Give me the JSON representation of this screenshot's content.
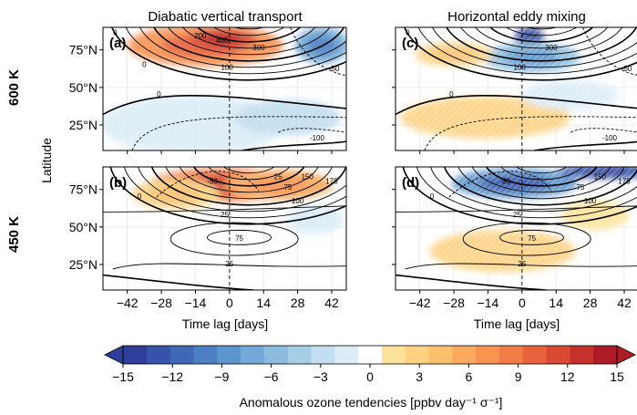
{
  "chart_data": {
    "type": "heatmap",
    "column_titles": [
      "Diabatic vertical transport",
      "Horizontal eddy mixing"
    ],
    "row_labels": [
      "600 K",
      "450 K"
    ],
    "ylabel": "Latitude",
    "xlabel": "Time lag [days]",
    "xlim": [
      -52,
      48
    ],
    "ylim": [
      8,
      90
    ],
    "xticks": [
      -42,
      -28,
      -14,
      0,
      14,
      28,
      42
    ],
    "xtick_labels": [
      "−42",
      "−28",
      "−14",
      "0",
      "14",
      "28",
      "42"
    ],
    "yticks": [
      25,
      50,
      75
    ],
    "ytick_labels": [
      "25°N",
      "50°N",
      "75°N"
    ],
    "vertical_line_at": 0,
    "panels": [
      {
        "label": "(a)",
        "row": 0,
        "col": 0,
        "contour_labels": [
          {
            "text": "0",
            "x": -47,
            "y": 86
          },
          {
            "text": "200",
            "x": -12,
            "y": 84
          },
          {
            "text": "400",
            "x": -3,
            "y": 81
          },
          {
            "text": "300",
            "x": 12,
            "y": 76
          },
          {
            "text": "100",
            "x": -1,
            "y": 63
          },
          {
            "text": "0",
            "x": -35,
            "y": 65
          },
          {
            "text": "0",
            "x": -29,
            "y": 45
          },
          {
            "text": "-50",
            "x": 43,
            "y": 62
          },
          {
            "text": "-100",
            "x": 36,
            "y": 16
          }
        ],
        "tendency_blobs": [
          {
            "x": -10,
            "y": 78,
            "dx": 32,
            "dy": 14,
            "value": 8
          },
          {
            "x": -3,
            "y": 82,
            "dx": 14,
            "dy": 7,
            "value": 12
          },
          {
            "x": 38,
            "y": 78,
            "dx": 11,
            "dy": 12,
            "value": -8
          },
          {
            "x": -15,
            "y": 25,
            "dx": 38,
            "dy": 20,
            "value": -2
          },
          {
            "x": 24,
            "y": 30,
            "dx": 22,
            "dy": 12,
            "value": -3
          }
        ]
      },
      {
        "label": "(c)",
        "row": 0,
        "col": 1,
        "contour_labels": [
          {
            "text": "0",
            "x": -47,
            "y": 86
          },
          {
            "text": "300",
            "x": 12,
            "y": 76
          },
          {
            "text": "100",
            "x": -1,
            "y": 63
          },
          {
            "text": "0",
            "x": -29,
            "y": 45
          },
          {
            "text": "-50",
            "x": 43,
            "y": 62
          },
          {
            "text": "-100",
            "x": 36,
            "y": 16
          }
        ],
        "tendency_blobs": [
          {
            "x": 3,
            "y": 84,
            "dx": 6,
            "dy": 6,
            "value": -15
          },
          {
            "x": 4,
            "y": 70,
            "dx": 20,
            "dy": 10,
            "value": -7
          },
          {
            "x": -28,
            "y": 72,
            "dx": 16,
            "dy": 8,
            "value": 4
          },
          {
            "x": -15,
            "y": 30,
            "dx": 35,
            "dy": 14,
            "value": 3
          },
          {
            "x": 20,
            "y": 45,
            "dx": 20,
            "dy": 10,
            "value": -2
          }
        ]
      },
      {
        "label": "(b)",
        "row": 1,
        "col": 0,
        "contour_labels": [
          {
            "text": "-50",
            "x": -7,
            "y": 80
          },
          {
            "text": "0",
            "x": -37,
            "y": 70
          },
          {
            "text": "25",
            "x": 20,
            "y": 83
          },
          {
            "text": "75",
            "x": 24,
            "y": 76
          },
          {
            "text": "150",
            "x": 32,
            "y": 83
          },
          {
            "text": "175",
            "x": 42,
            "y": 80
          },
          {
            "text": "100",
            "x": 28,
            "y": 67
          },
          {
            "text": "25",
            "x": -2,
            "y": 58
          },
          {
            "text": "75",
            "x": 4,
            "y": 42
          },
          {
            "text": "25",
            "x": 0,
            "y": 25
          }
        ],
        "tendency_blobs": [
          {
            "x": -3,
            "y": 78,
            "dx": 30,
            "dy": 11,
            "value": 10
          },
          {
            "x": 20,
            "y": 78,
            "dx": 22,
            "dy": 10,
            "value": 6
          },
          {
            "x": -22,
            "y": 72,
            "dx": 18,
            "dy": 10,
            "value": 4
          },
          {
            "x": 35,
            "y": 55,
            "dx": 12,
            "dy": 10,
            "value": -2
          }
        ]
      },
      {
        "label": "(d)",
        "row": 1,
        "col": 1,
        "contour_labels": [
          {
            "text": "-50",
            "x": -7,
            "y": 80
          },
          {
            "text": "0",
            "x": -37,
            "y": 70
          },
          {
            "text": "75",
            "x": 24,
            "y": 76
          },
          {
            "text": "150",
            "x": 32,
            "y": 83
          },
          {
            "text": "175",
            "x": 42,
            "y": 80
          },
          {
            "text": "100",
            "x": 28,
            "y": 67
          },
          {
            "text": "25",
            "x": -2,
            "y": 58
          },
          {
            "text": "75",
            "x": 4,
            "y": 42
          },
          {
            "text": "25",
            "x": 0,
            "y": 25
          }
        ],
        "tendency_blobs": [
          {
            "x": -3,
            "y": 79,
            "dx": 26,
            "dy": 10,
            "value": -10
          },
          {
            "x": 35,
            "y": 87,
            "dx": 20,
            "dy": 5,
            "value": -14
          },
          {
            "x": -8,
            "y": 34,
            "dx": 30,
            "dy": 14,
            "value": 3
          },
          {
            "x": 30,
            "y": 58,
            "dx": 14,
            "dy": 10,
            "value": 2
          }
        ]
      }
    ],
    "colorbar": {
      "label": "Anomalous ozone tendencies [ppbv day⁻¹ σ⁻¹]",
      "min": -15,
      "max": 15,
      "step": 1.5,
      "ticks": [
        -15,
        -12,
        -9,
        -6,
        -3,
        0,
        3,
        6,
        9,
        12,
        15
      ],
      "tick_labels": [
        "−15",
        "−12",
        "−9",
        "−6",
        "−3",
        "0",
        "3",
        "6",
        "9",
        "12",
        "15"
      ],
      "colors_negative": [
        "#2e3f99",
        "#3554aa",
        "#3f69b7",
        "#4c7fc2",
        "#5c94cd",
        "#72a9d6",
        "#8cbddf",
        "#a7cee7",
        "#c3def0",
        "#dcedf6"
      ],
      "color_zero": "#ffffff",
      "colors_positive": [
        "#fde39a",
        "#fdd283",
        "#fcc06f",
        "#fba95f",
        "#f89352",
        "#f27c46",
        "#e8623c",
        "#d94a32",
        "#c6322b",
        "#ae1b26"
      ]
    }
  }
}
